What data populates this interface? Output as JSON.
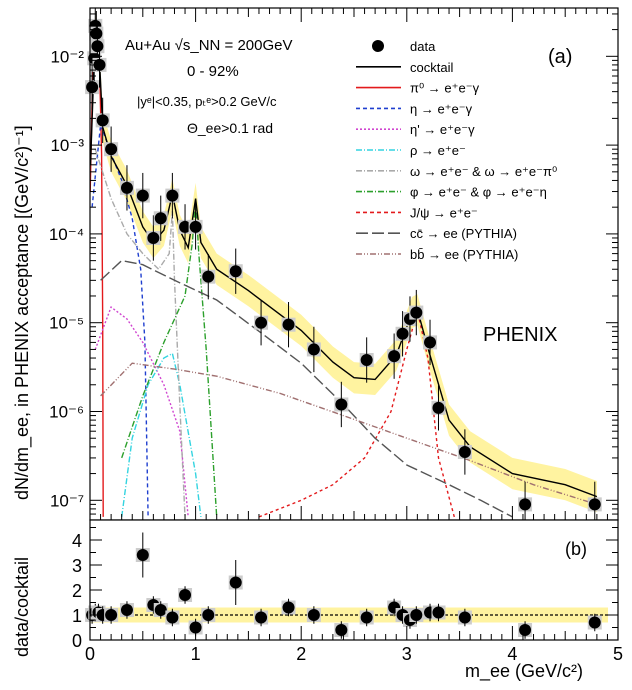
{
  "panels": {
    "top": {
      "label": "(a)",
      "ylabel": "dN/dm_ee, in PHENIX acceptance [(GeV/c²)⁻¹]",
      "yticks": [
        "10⁻⁷",
        "10⁻⁶",
        "10⁻⁵",
        "10⁻⁴",
        "10⁻³",
        "10⁻²"
      ],
      "info_lines": [
        "Au+Au √s_NN = 200GeV",
        "0 - 92%",
        "|yᵉ|<0.35, pₜᵉ>0.2 GeV/c",
        "Θ_ee>0.1 rad"
      ],
      "watermark": "PHENIX"
    },
    "bottom": {
      "label": "(b)",
      "ylabel": "data/cocktail",
      "yticks": [
        "0",
        "1",
        "2",
        "3",
        "4"
      ]
    }
  },
  "xaxis": {
    "label": "m_ee (GeV/c²)",
    "ticks": [
      "0",
      "1",
      "2",
      "3",
      "4",
      "5"
    ]
  },
  "legend": [
    {
      "label": "data",
      "style": "marker",
      "color": "#000000"
    },
    {
      "label": "cocktail",
      "style": "solid",
      "color": "#000000"
    },
    {
      "label": "π⁰ → e⁺e⁻γ",
      "style": "solid",
      "color": "#e31a1c"
    },
    {
      "label": "η → e⁺e⁻γ",
      "style": "dashed",
      "color": "#1f3fcf"
    },
    {
      "label": "η' → e⁺e⁻γ",
      "style": "dotted",
      "color": "#d046d0"
    },
    {
      "label": "ρ → e⁺e⁻",
      "style": "dashdot",
      "color": "#33d4e0"
    },
    {
      "label": "ω → e⁺e⁻ & ω → e⁺e⁻π⁰",
      "style": "dashdot",
      "color": "#aaaaaa"
    },
    {
      "label": "φ → e⁺e⁻ & φ → e⁺e⁻η",
      "style": "dashdot",
      "color": "#2ca02c"
    },
    {
      "label": "J/ψ → e⁺e⁻",
      "style": "dashed",
      "color": "#e31a1c"
    },
    {
      "label": "cc̄ → ee (PYTHIA)",
      "style": "longdash",
      "color": "#555555"
    },
    {
      "label": "bb̄ → ee (PYTHIA)",
      "style": "dashdotdot",
      "color": "#a07070"
    }
  ],
  "chart_data": [
    {
      "type": "scatter",
      "title": "",
      "xlabel": "m_ee (GeV/c²)",
      "ylabel": "dN/dm_ee, in PHENIX acceptance [(GeV/c²)⁻¹]",
      "xlim": [
        0,
        5
      ],
      "ylim": [
        6e-08,
        0.035
      ],
      "yscale": "log",
      "series": [
        {
          "name": "data",
          "points": [
            [
              0.02,
              0.0045
            ],
            [
              0.04,
              0.0095
            ],
            [
              0.05,
              0.022
            ],
            [
              0.06,
              0.018
            ],
            [
              0.07,
              0.013
            ],
            [
              0.09,
              0.008
            ],
            [
              0.12,
              0.0019
            ],
            [
              0.2,
              0.0009
            ],
            [
              0.35,
              0.00033
            ],
            [
              0.5,
              0.00027
            ],
            [
              0.6,
              9e-05
            ],
            [
              0.67,
              0.00015
            ],
            [
              0.78,
              0.00027
            ],
            [
              0.9,
              0.00012
            ],
            [
              1.0,
              0.00012
            ],
            [
              1.12,
              3.3e-05
            ],
            [
              1.38,
              3.8e-05
            ],
            [
              1.62,
              1e-05
            ],
            [
              1.88,
              9.5e-06
            ],
            [
              2.12,
              5e-06
            ],
            [
              2.38,
              1.2e-06
            ],
            [
              2.62,
              3.8e-06
            ],
            [
              2.88,
              4.2e-06
            ],
            [
              2.96,
              7.5e-06
            ],
            [
              3.03,
              1.1e-05
            ],
            [
              3.09,
              1.3e-05
            ],
            [
              3.22,
              6e-06
            ],
            [
              3.3,
              1.1e-06
            ],
            [
              3.55,
              3.5e-07
            ],
            [
              4.12,
              9e-08
            ],
            [
              4.78,
              9e-08
            ]
          ]
        },
        {
          "name": "cocktail",
          "points": [
            [
              0.005,
              0.0006
            ],
            [
              0.05,
              0.02
            ],
            [
              0.09,
              0.009
            ],
            [
              0.12,
              0.0016
            ],
            [
              0.2,
              0.00075
            ],
            [
              0.35,
              0.00035
            ],
            [
              0.5,
              0.00012
            ],
            [
              0.6,
              8e-05
            ],
            [
              0.7,
              0.00011
            ],
            [
              0.78,
              0.00028
            ],
            [
              0.85,
              0.00011
            ],
            [
              0.93,
              7e-05
            ],
            [
              1.0,
              0.00025
            ],
            [
              1.05,
              8e-05
            ],
            [
              1.2,
              4e-05
            ],
            [
              1.5,
              2.3e-05
            ],
            [
              2.0,
              8.2e-06
            ],
            [
              2.3,
              3.6e-06
            ],
            [
              2.5,
              2.4e-06
            ],
            [
              2.7,
              2.3e-06
            ],
            [
              2.9,
              4.3e-06
            ],
            [
              3.05,
              1.3e-05
            ],
            [
              3.1,
              1.4e-05
            ],
            [
              3.2,
              5.2e-06
            ],
            [
              3.4,
              8e-07
            ],
            [
              3.6,
              4e-07
            ],
            [
              4.0,
              2e-07
            ],
            [
              4.5,
              1.5e-07
            ],
            [
              4.8,
              1.1e-07
            ]
          ]
        }
      ]
    },
    {
      "type": "scatter",
      "title": "",
      "xlabel": "m_ee (GeV/c²)",
      "ylabel": "data/cocktail",
      "xlim": [
        0,
        5
      ],
      "ylim": [
        0,
        4.8
      ],
      "yscale": "linear",
      "reference_line": 1,
      "series": [
        {
          "name": "data/cocktail",
          "points": [
            [
              0.02,
              1.0
            ],
            [
              0.05,
              1.1
            ],
            [
              0.08,
              1.1
            ],
            [
              0.12,
              1.0
            ],
            [
              0.2,
              1.0
            ],
            [
              0.35,
              1.2
            ],
            [
              0.5,
              3.4
            ],
            [
              0.6,
              1.4
            ],
            [
              0.67,
              1.2
            ],
            [
              0.78,
              0.9
            ],
            [
              0.9,
              1.8
            ],
            [
              1.0,
              0.5
            ],
            [
              1.12,
              1.0
            ],
            [
              1.38,
              2.3
            ],
            [
              1.62,
              0.9
            ],
            [
              1.88,
              1.3
            ],
            [
              2.12,
              1.0
            ],
            [
              2.38,
              0.4
            ],
            [
              2.62,
              0.9
            ],
            [
              2.88,
              1.3
            ],
            [
              2.96,
              1.0
            ],
            [
              3.03,
              0.8
            ],
            [
              3.09,
              1.0
            ],
            [
              3.22,
              1.1
            ],
            [
              3.3,
              1.1
            ],
            [
              3.55,
              0.9
            ],
            [
              4.12,
              0.4
            ],
            [
              4.78,
              0.7
            ]
          ]
        }
      ]
    }
  ]
}
